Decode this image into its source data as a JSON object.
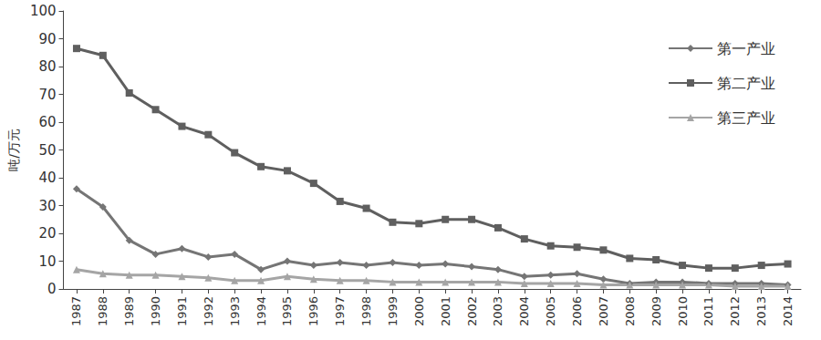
{
  "chart_data": {
    "type": "line",
    "y_label": "吨/万元",
    "categories": [
      "1987",
      "1988",
      "1989",
      "1990",
      "1991",
      "1992",
      "1993",
      "1994",
      "1995",
      "1996",
      "1997",
      "1998",
      "1999",
      "2000",
      "2001",
      "2002",
      "2003",
      "2004",
      "2005",
      "2006",
      "2007",
      "2008",
      "2009",
      "2010",
      "2011",
      "2012",
      "2013",
      "2014"
    ],
    "series": [
      {
        "name": "第一产业",
        "color": "#757575",
        "marker": "diamond",
        "values": [
          36,
          29.5,
          17.5,
          12.5,
          14.5,
          11.5,
          12.5,
          7,
          10,
          8.5,
          9.5,
          8.5,
          9.5,
          8.5,
          9,
          8,
          7,
          4.5,
          5,
          5.5,
          3.5,
          2,
          2.5,
          2.5,
          2,
          2,
          2,
          1.5
        ]
      },
      {
        "name": "第二产业",
        "color": "#5f5f5f",
        "marker": "square",
        "values": [
          86.5,
          84,
          70.5,
          64.5,
          58.5,
          55.5,
          49,
          44,
          42.5,
          38,
          31.5,
          29,
          24,
          23.5,
          25,
          25,
          22,
          18,
          15.5,
          15,
          14,
          11,
          10.5,
          8.5,
          7.5,
          7.5,
          8.5,
          9
        ]
      },
      {
        "name": "第三产业",
        "color": "#a5a5a5",
        "marker": "triangle",
        "values": [
          7,
          5.5,
          5,
          5,
          4.5,
          4,
          3,
          3,
          4.5,
          3.5,
          3,
          3,
          2.5,
          2.5,
          2.5,
          2.5,
          2.5,
          2,
          2,
          2,
          1.5,
          1.5,
          1.5,
          1.5,
          1.5,
          1,
          1,
          1
        ]
      }
    ],
    "ylim": [
      0,
      100
    ],
    "yticks": [
      0,
      10,
      20,
      30,
      40,
      50,
      60,
      70,
      80,
      90,
      100
    ],
    "grid": false,
    "legend": "upper right"
  }
}
